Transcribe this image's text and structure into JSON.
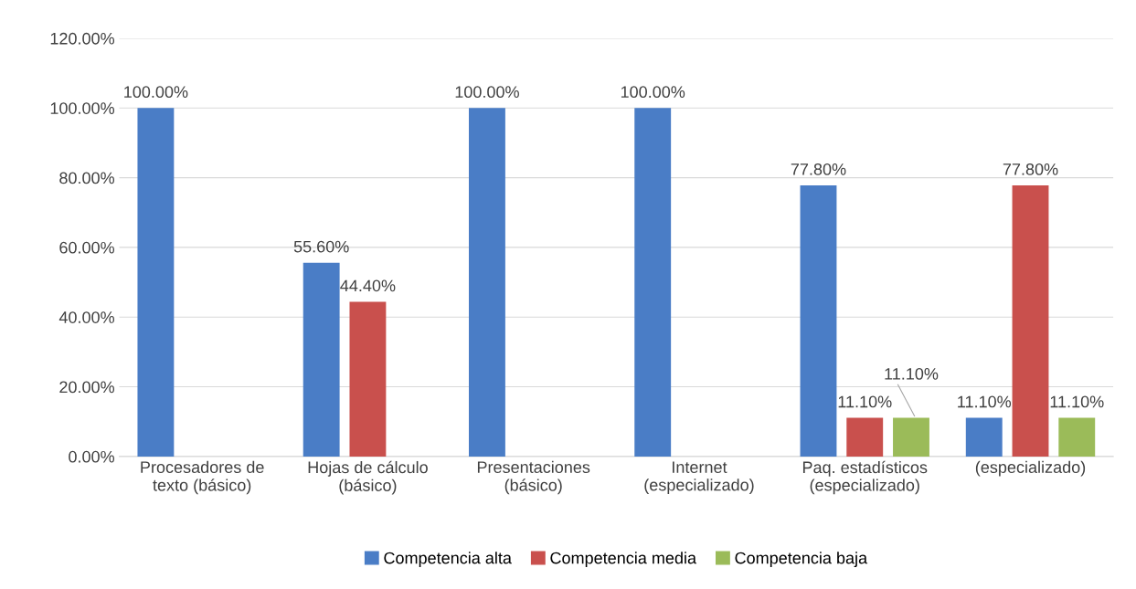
{
  "chart_data": {
    "type": "bar",
    "categories": [
      "Procesadores de\ntexto (básico)",
      "Hojas de cálculo\n(básico)",
      "Presentaciones\n(básico)",
      "Internet\n(especializado)",
      "Paq. estadísticos\n(especializado)",
      "(especializado)"
    ],
    "series": [
      {
        "name": "Competencia alta",
        "color": "#4a7dc6",
        "values": [
          100,
          55.6,
          100,
          100,
          77.8,
          11.1
        ],
        "value_labels": [
          "100.00%",
          "55.60%",
          "100.00%",
          "100.00%",
          "77.80%",
          "11.10%"
        ]
      },
      {
        "name": "Competencia media",
        "color": "#c9504d",
        "values": [
          null,
          44.4,
          null,
          null,
          11.1,
          77.8
        ],
        "value_labels": [
          null,
          "44.40%",
          null,
          null,
          "11.10%",
          "77.80%"
        ]
      },
      {
        "name": "Competencia baja",
        "color": "#9bbb59",
        "values": [
          null,
          null,
          null,
          null,
          11.1,
          11.1
        ],
        "value_labels": [
          null,
          null,
          null,
          null,
          "11.10%",
          "11.10%"
        ]
      }
    ],
    "ylim": [
      0,
      120
    ],
    "yticks": [
      {
        "value": 0,
        "label": "0.00%"
      },
      {
        "value": 20,
        "label": "20.00%"
      },
      {
        "value": 40,
        "label": "40.00%"
      },
      {
        "value": 60,
        "label": "60.00%"
      },
      {
        "value": 80,
        "label": "80.00%"
      },
      {
        "value": 100,
        "label": "100.00%"
      },
      {
        "value": 120,
        "label": "120.00%"
      }
    ],
    "grid": "y",
    "legend": "bottom"
  }
}
